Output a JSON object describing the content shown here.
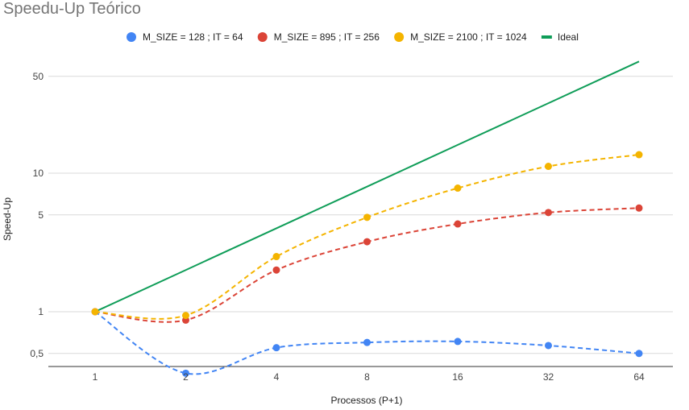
{
  "chart_data": {
    "type": "line",
    "title": "Speedu-Up Teórico",
    "xlabel": "Processos (P+1)",
    "ylabel": "Speed-Up",
    "x": [
      1,
      2,
      4,
      8,
      16,
      32,
      64
    ],
    "x_tick_labels": [
      "1",
      "2",
      "4",
      "8",
      "16",
      "32",
      "64"
    ],
    "x_scale": "log2",
    "y_scale": "log",
    "y_ticks": [
      0.5,
      1,
      5,
      10,
      50
    ],
    "y_tick_labels": [
      "0,5",
      "1",
      "5",
      "10",
      "50"
    ],
    "ylim": [
      0.35,
      64
    ],
    "grid": true,
    "legend_position": "top",
    "series": [
      {
        "name": "M_SIZE = 128 ; IT = 64",
        "color": "#4285F4",
        "style": "dashed",
        "markers": true,
        "values": [
          1.0,
          0.36,
          0.55,
          0.6,
          0.61,
          0.57,
          0.5
        ]
      },
      {
        "name": "M_SIZE = 895 ; IT = 256",
        "color": "#DB4437",
        "style": "dashed",
        "markers": true,
        "values": [
          1.0,
          0.87,
          2.0,
          3.2,
          4.3,
          5.2,
          5.6
        ]
      },
      {
        "name": "M_SIZE = 2100 ; IT = 1024",
        "color": "#F4B400",
        "style": "dashed",
        "markers": true,
        "values": [
          1.0,
          0.94,
          2.5,
          4.8,
          7.8,
          11.2,
          13.6
        ]
      },
      {
        "name": "Ideal",
        "color": "#0F9D58",
        "style": "solid",
        "markers": false,
        "values": [
          1,
          2,
          4,
          8,
          16,
          32,
          64
        ]
      }
    ]
  }
}
